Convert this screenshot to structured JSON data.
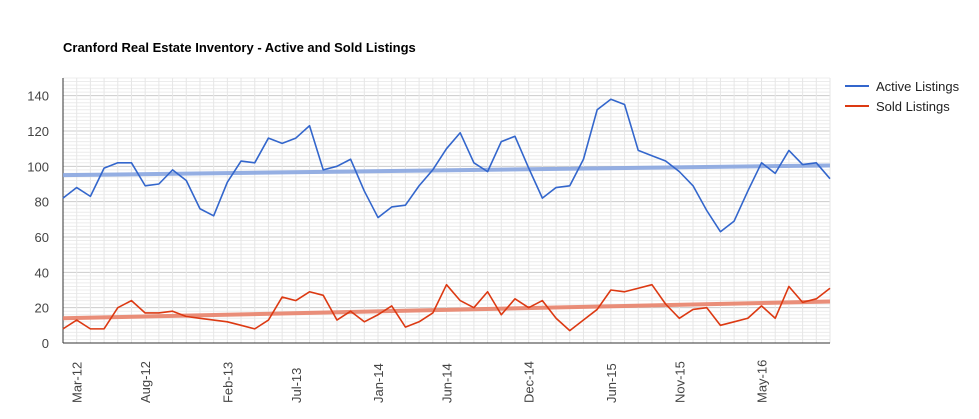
{
  "chart_data": {
    "type": "line",
    "title": "Cranford Real Estate Inventory - Active and Sold Listings",
    "xlabel": "",
    "ylabel": "",
    "ylim": [
      0,
      150
    ],
    "yticks": [
      0,
      20,
      40,
      60,
      80,
      100,
      120,
      140
    ],
    "x_tick_labels": [
      "Mar-12",
      "Aug-12",
      "Feb-13",
      "Jul-13",
      "Jan-14",
      "Jun-14",
      "Dec-14",
      "Jun-15",
      "Nov-15",
      "May-16"
    ],
    "grid": true,
    "legend_position": "right",
    "series": [
      {
        "name": "Active Listings",
        "color": "#3366cc",
        "trend_color": "#8aa6e0",
        "values": [
          82,
          88,
          83,
          99,
          102,
          102,
          89,
          90,
          98,
          92,
          76,
          72,
          91,
          103,
          102,
          116,
          113,
          116,
          123,
          98,
          100,
          104,
          86,
          71,
          77,
          78,
          89,
          98,
          110,
          119,
          102,
          97,
          114,
          117,
          99,
          82,
          88,
          89,
          104,
          132,
          138,
          135,
          109,
          106,
          103,
          97,
          89,
          75,
          63,
          69,
          86,
          102,
          96,
          109,
          101,
          102,
          93
        ],
        "trend": [
          95,
          100.5
        ]
      },
      {
        "name": "Sold Listings",
        "color": "#dc3912",
        "trend_color": "#e8826a",
        "values": [
          8,
          13,
          8,
          8,
          20,
          24,
          17,
          17,
          18,
          15,
          14,
          13,
          12,
          10,
          8,
          13,
          26,
          24,
          29,
          27,
          13,
          18,
          12,
          16,
          21,
          9,
          12,
          17,
          33,
          24,
          20,
          29,
          16,
          25,
          20,
          24,
          14,
          7,
          13,
          19,
          30,
          29,
          31,
          33,
          22,
          14,
          19,
          20,
          10,
          12,
          14,
          21,
          14,
          32,
          23,
          25,
          31
        ],
        "trend": [
          14,
          23.5
        ]
      }
    ]
  }
}
